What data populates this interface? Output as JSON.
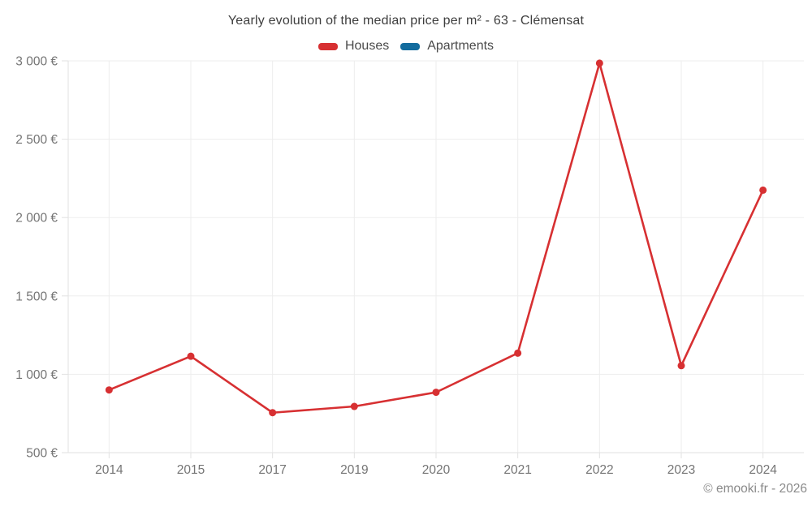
{
  "title": "Yearly evolution of the median price per m² - 63 - Clémensat",
  "footer": "© emooki.fr - 2026",
  "legend": [
    {
      "label": "Houses",
      "color": "#d73032"
    },
    {
      "label": "Apartments",
      "color": "#136c9e"
    }
  ],
  "chart_data": {
    "type": "line",
    "title": "Yearly evolution of the median price per m² - 63 - Clémensat",
    "categories": [
      "2014",
      "2015",
      "2017",
      "2019",
      "2020",
      "2021",
      "2022",
      "2023",
      "2024"
    ],
    "series": [
      {
        "name": "Houses",
        "color": "#d73032",
        "values": [
          900,
          1115,
          755,
          795,
          885,
          1135,
          2985,
          1055,
          2175
        ]
      },
      {
        "name": "Apartments",
        "color": "#136c9e",
        "values": []
      }
    ],
    "xlabel": "",
    "ylabel": "",
    "yticks": [
      500,
      1000,
      1500,
      2000,
      2500,
      3000
    ],
    "ytick_labels": [
      "500 €",
      "1 000 €",
      "1 500 €",
      "2 000 €",
      "2 500 €",
      "3 000 €"
    ],
    "ylim": [
      500,
      3000
    ],
    "grid": true,
    "legend_position": "top",
    "marker": "circle"
  },
  "style": {
    "grid_color": "#ededed",
    "axis_color": "#e2e2e2",
    "tick_label_color": "#757575"
  }
}
